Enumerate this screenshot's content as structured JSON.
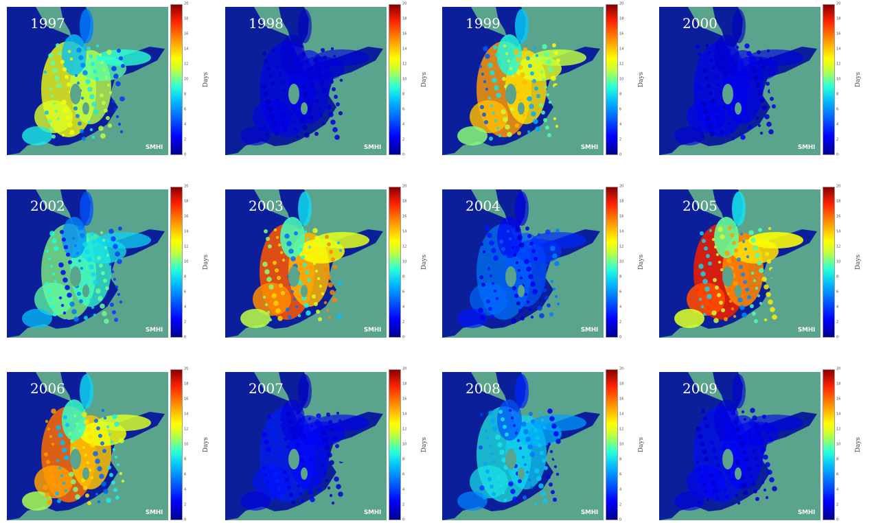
{
  "figure": {
    "unit_label": "Days",
    "brand_label": "SMHI",
    "colorbar_ticks": [
      "0",
      "2",
      "4",
      "6",
      "8",
      "10",
      "12",
      "14",
      "16",
      "18",
      "20"
    ],
    "colors": {
      "land": "#5aa38c",
      "water": "#0c1f9b",
      "low": "#00008f",
      "mid": "#33f6ff",
      "high": "#ffff00",
      "max": "#8b0000"
    },
    "panels": [
      {
        "year": "1997",
        "intensity": 0.72
      },
      {
        "year": "1998",
        "intensity": 0.16
      },
      {
        "year": "1999",
        "intensity": 0.82
      },
      {
        "year": "2000",
        "intensity": 0.2
      },
      {
        "year": "2002",
        "intensity": 0.58
      },
      {
        "year": "2003",
        "intensity": 0.88
      },
      {
        "year": "2004",
        "intensity": 0.34
      },
      {
        "year": "2005",
        "intensity": 0.96
      },
      {
        "year": "2006",
        "intensity": 0.86
      },
      {
        "year": "2007",
        "intensity": 0.24
      },
      {
        "year": "2008",
        "intensity": 0.48
      },
      {
        "year": "2009",
        "intensity": 0.18
      }
    ]
  }
}
